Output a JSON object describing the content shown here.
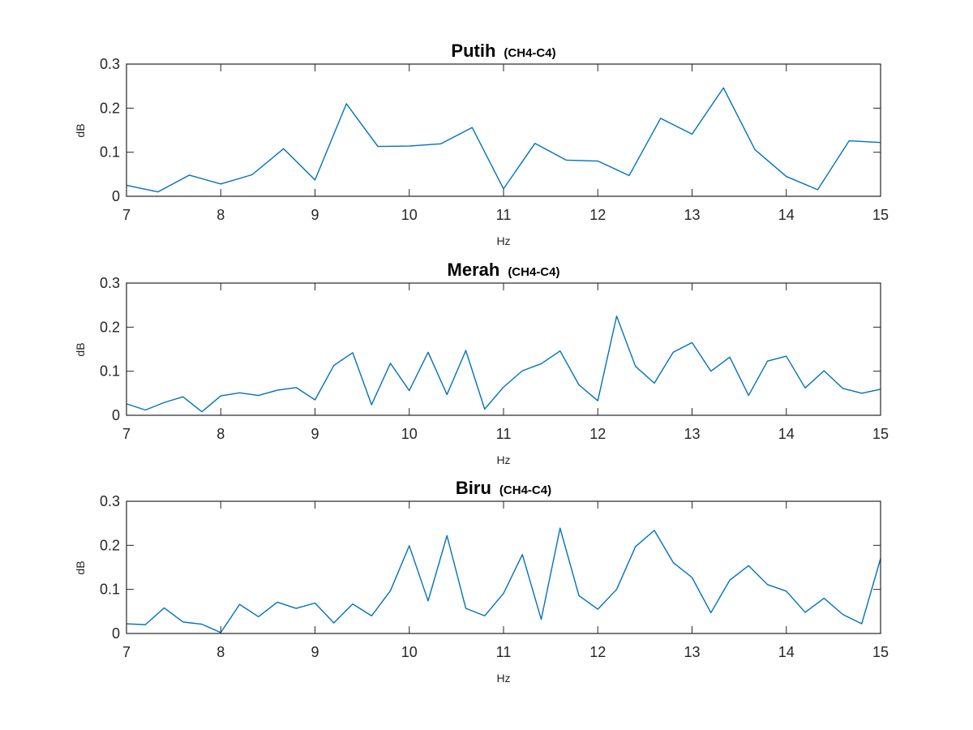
{
  "colors": {
    "series": "#0072BD",
    "axes": "#262626",
    "background": "#ffffff"
  },
  "chart_data": [
    {
      "type": "line",
      "title": "Putih",
      "subtitle": "(CH4-C4)",
      "xlabel": "Hz",
      "ylabel": "dB",
      "xlim": [
        7,
        15
      ],
      "ylim": [
        0,
        0.3
      ],
      "xticks": [
        7,
        8,
        9,
        10,
        11,
        12,
        13,
        14,
        15
      ],
      "yticks": [
        0,
        0.1,
        0.2,
        0.3
      ],
      "grid": false,
      "x": [
        7.0,
        7.333,
        7.667,
        8.0,
        8.333,
        8.667,
        9.0,
        9.333,
        9.667,
        10.0,
        10.333,
        10.667,
        11.0,
        11.333,
        11.667,
        12.0,
        12.333,
        12.667,
        13.0,
        13.333,
        13.667,
        14.0,
        14.333,
        14.667,
        15.0
      ],
      "y": [
        0.025,
        0.01,
        0.048,
        0.028,
        0.049,
        0.108,
        0.037,
        0.21,
        0.113,
        0.114,
        0.119,
        0.156,
        0.017,
        0.12,
        0.082,
        0.08,
        0.047,
        0.177,
        0.141,
        0.246,
        0.106,
        0.045,
        0.015,
        0.126,
        0.122
      ]
    },
    {
      "type": "line",
      "title": "Merah",
      "subtitle": "(CH4-C4)",
      "xlabel": "Hz",
      "ylabel": "dB",
      "xlim": [
        7,
        15
      ],
      "ylim": [
        0,
        0.3
      ],
      "xticks": [
        7,
        8,
        9,
        10,
        11,
        12,
        13,
        14,
        15
      ],
      "yticks": [
        0,
        0.1,
        0.2,
        0.3
      ],
      "grid": false,
      "x": [
        7.0,
        7.2,
        7.4,
        7.6,
        7.8,
        8.0,
        8.2,
        8.4,
        8.6,
        8.8,
        9.0,
        9.2,
        9.4,
        9.6,
        9.8,
        10.0,
        10.2,
        10.4,
        10.6,
        10.8,
        11.0,
        11.2,
        11.4,
        11.6,
        11.8,
        12.0,
        12.2,
        12.4,
        12.6,
        12.8,
        13.0,
        13.2,
        13.4,
        13.6,
        13.8,
        14.0,
        14.2,
        14.4,
        14.6,
        14.8,
        15.0
      ],
      "y": [
        0.026,
        0.012,
        0.029,
        0.042,
        0.008,
        0.044,
        0.051,
        0.045,
        0.057,
        0.063,
        0.035,
        0.113,
        0.142,
        0.024,
        0.118,
        0.056,
        0.143,
        0.047,
        0.147,
        0.014,
        0.064,
        0.101,
        0.117,
        0.146,
        0.069,
        0.033,
        0.225,
        0.111,
        0.073,
        0.143,
        0.165,
        0.1,
        0.132,
        0.045,
        0.123,
        0.134,
        0.062,
        0.101,
        0.061,
        0.05,
        0.059
      ]
    },
    {
      "type": "line",
      "title": "Biru",
      "subtitle": "(CH4-C4)",
      "xlabel": "Hz",
      "ylabel": "dB",
      "xlim": [
        7,
        15
      ],
      "ylim": [
        0,
        0.3
      ],
      "xticks": [
        7,
        8,
        9,
        10,
        11,
        12,
        13,
        14,
        15
      ],
      "yticks": [
        0,
        0.1,
        0.2,
        0.3
      ],
      "grid": false,
      "x": [
        7.0,
        7.2,
        7.4,
        7.6,
        7.8,
        8.0,
        8.2,
        8.4,
        8.6,
        8.8,
        9.0,
        9.2,
        9.4,
        9.6,
        9.8,
        10.0,
        10.2,
        10.4,
        10.6,
        10.8,
        11.0,
        11.2,
        11.4,
        11.6,
        11.8,
        12.0,
        12.2,
        12.4,
        12.6,
        12.8,
        13.0,
        13.2,
        13.4,
        13.6,
        13.8,
        14.0,
        14.2,
        14.4,
        14.6,
        14.8,
        15.0
      ],
      "y": [
        0.022,
        0.02,
        0.058,
        0.026,
        0.021,
        0.002,
        0.066,
        0.038,
        0.071,
        0.057,
        0.069,
        0.024,
        0.067,
        0.04,
        0.097,
        0.199,
        0.074,
        0.222,
        0.057,
        0.04,
        0.091,
        0.179,
        0.032,
        0.239,
        0.086,
        0.055,
        0.1,
        0.197,
        0.234,
        0.161,
        0.127,
        0.047,
        0.121,
        0.154,
        0.111,
        0.096,
        0.048,
        0.08,
        0.043,
        0.022,
        0.17
      ]
    }
  ]
}
